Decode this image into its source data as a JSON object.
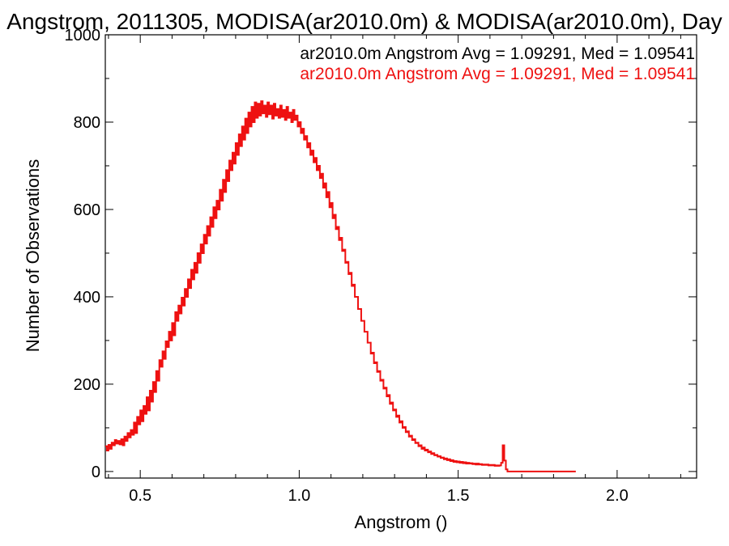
{
  "chart_data": {
    "type": "histogram",
    "title": "Angstrom, 2011305, MODISA(ar2010.0m) & MODISA(ar2010.0m), Day",
    "xlabel": "Angstrom ()",
    "ylabel": "Number of Observations",
    "xlim": [
      0.39,
      2.25
    ],
    "ylim": [
      -15,
      1000
    ],
    "xticks": [
      0.5,
      1.0,
      1.5,
      2.0
    ],
    "xtick_labels": [
      "0.5",
      "1.0",
      "1.5",
      "2.0"
    ],
    "yticks": [
      0,
      200,
      400,
      600,
      800,
      1000
    ],
    "ytick_labels": [
      "0",
      "200",
      "400",
      "600",
      "800",
      "1000"
    ],
    "grid": false,
    "legend_placement": "top-right",
    "annotations": [
      {
        "text": "ar2010.0m Angstrom Avg = 1.09291, Med = 1.09541",
        "color": "#000000"
      },
      {
        "text": "ar2010.0m Angstrom Avg = 1.09291, Med = 1.09541",
        "color": "#ee1111"
      }
    ],
    "series": [
      {
        "color": "#ee1111",
        "bin_start": 0.39,
        "bin_width": 0.005,
        "values": [
          58,
          48,
          61,
          52,
          66,
          60,
          72,
          64,
          70,
          62,
          74,
          60,
          80,
          70,
          88,
          78,
          95,
          84,
          112,
          88,
          125,
          108,
          140,
          115,
          150,
          132,
          170,
          140,
          185,
          160,
          205,
          182,
          230,
          208,
          255,
          240,
          275,
          258,
          298,
          285,
          320,
          300,
          340,
          312,
          365,
          345,
          380,
          362,
          398,
          380,
          418,
          400,
          440,
          420,
          462,
          440,
          478,
          455,
          500,
          478,
          520,
          500,
          542,
          522,
          562,
          540,
          582,
          560,
          605,
          580,
          620,
          600,
          645,
          620,
          668,
          640,
          690,
          665,
          712,
          690,
          730,
          705,
          752,
          725,
          772,
          745,
          790,
          760,
          808,
          775,
          822,
          790,
          835,
          800,
          845,
          810,
          842,
          815,
          848,
          820,
          838,
          812,
          845,
          818,
          838,
          808,
          842,
          815,
          830,
          810,
          838,
          812,
          828,
          805,
          835,
          810,
          822,
          800,
          828,
          805,
          815,
          790,
          800,
          775,
          785,
          760,
          768,
          742,
          752,
          725,
          735,
          708,
          718,
          690,
          700,
          672,
          682,
          650,
          660,
          628,
          640,
          605,
          615,
          580,
          588,
          555,
          560,
          530,
          535,
          505,
          508,
          478,
          480,
          452,
          455,
          425,
          428,
          400,
          400,
          372,
          372,
          345,
          345,
          320,
          320,
          295,
          295,
          270,
          272,
          248,
          250,
          228,
          230,
          208,
          210,
          190,
          192,
          172,
          175,
          155,
          158,
          140,
          142,
          125,
          128,
          112,
          115,
          100,
          102,
          90,
          92,
          80,
          82,
          72,
          74,
          65,
          66,
          58,
          60,
          52,
          55,
          48,
          50,
          44,
          46,
          40,
          42,
          37,
          38,
          34,
          35,
          31,
          32,
          28,
          30,
          26,
          28,
          24,
          26,
          22,
          24,
          21,
          23,
          20,
          22,
          19,
          21,
          18,
          20,
          18,
          19,
          17,
          18,
          16,
          18,
          16,
          17,
          15,
          16,
          15,
          16,
          14,
          15,
          14,
          15,
          13,
          14,
          13,
          14,
          20,
          60,
          25,
          5,
          0,
          0,
          0,
          0,
          0,
          0,
          0,
          0,
          0,
          0,
          0,
          0,
          0,
          0,
          0,
          0,
          0,
          0,
          0,
          0,
          0,
          0,
          0,
          0,
          0,
          0,
          0,
          0,
          0,
          0,
          0,
          0,
          0,
          0,
          0,
          0,
          0,
          0,
          0,
          0,
          0,
          0,
          0
        ]
      }
    ]
  }
}
